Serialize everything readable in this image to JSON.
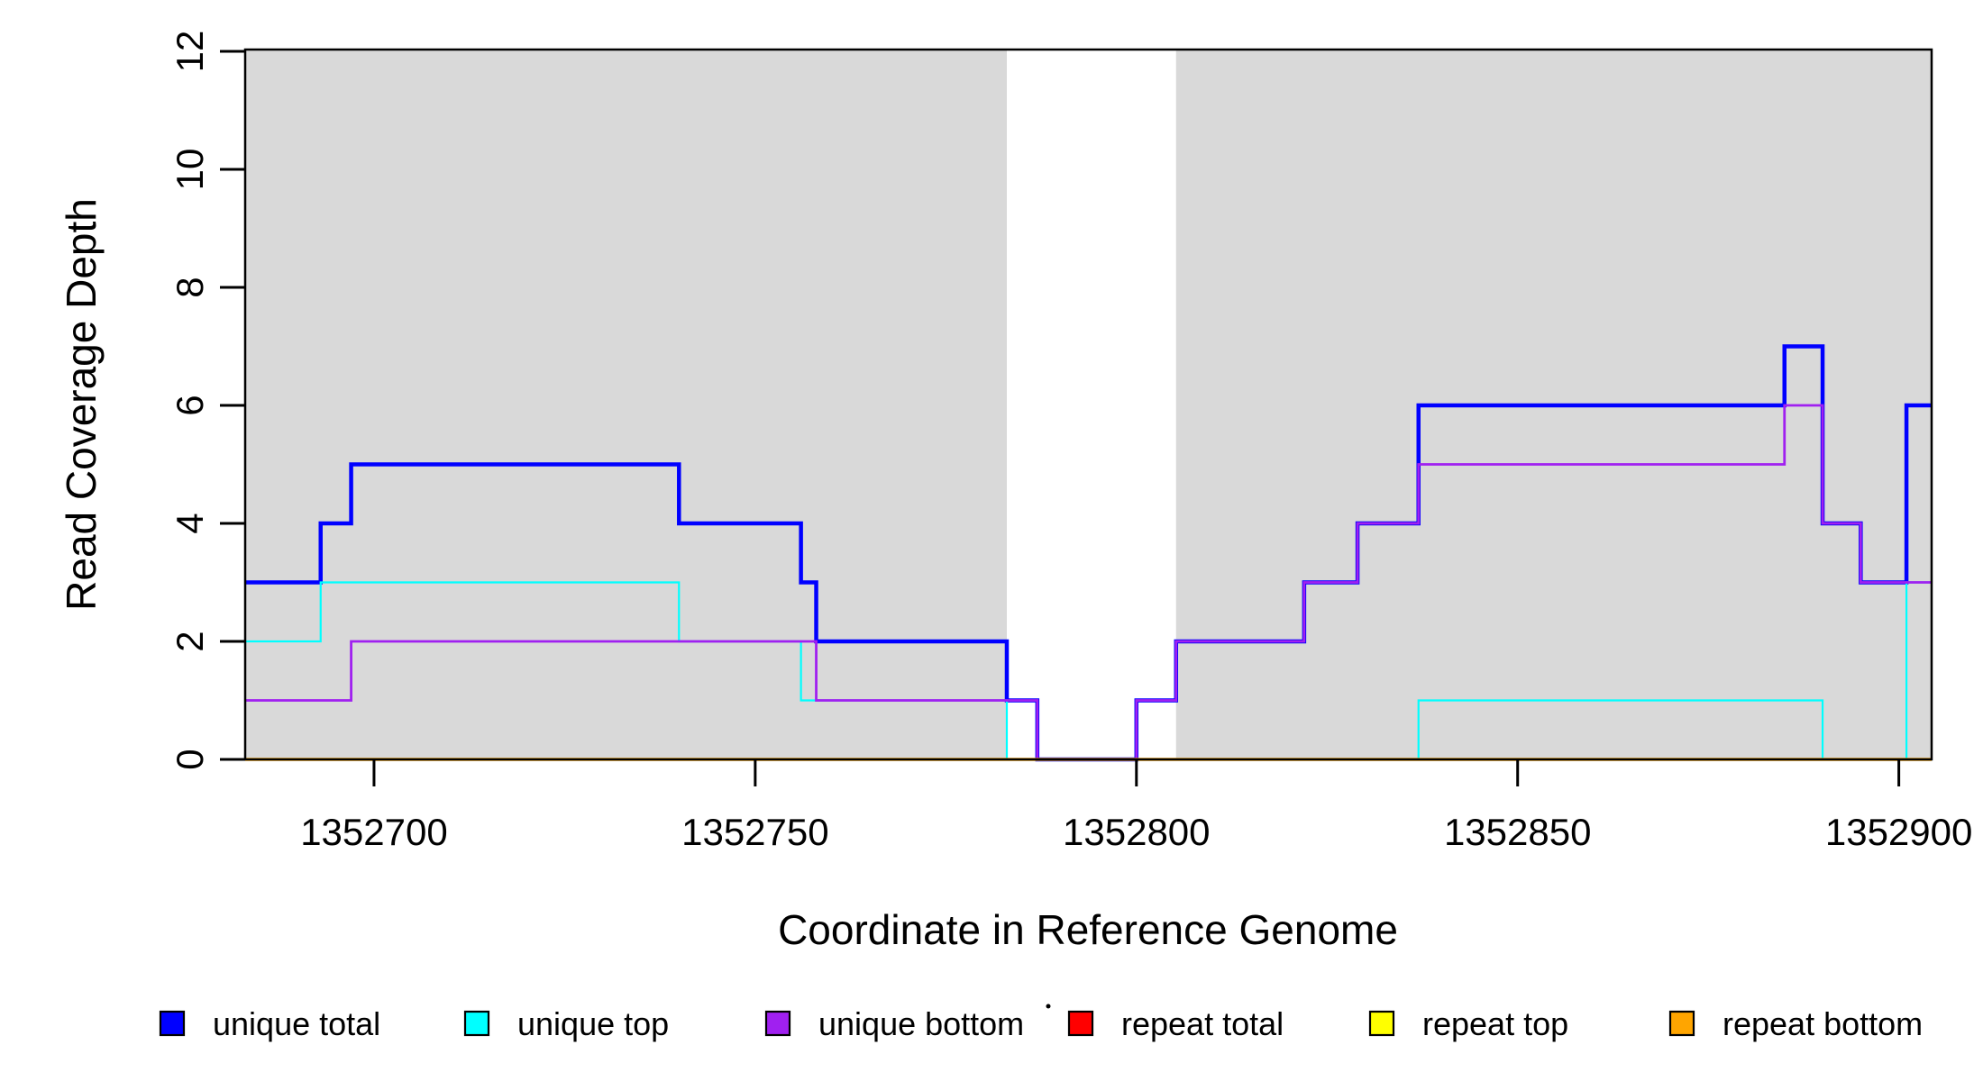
{
  "figure": {
    "xlabel": "Coordinate in Reference Genome",
    "ylabel": "Read Coverage Depth"
  },
  "chart_data": {
    "type": "line",
    "subtype": "step",
    "title": "",
    "xlabel": "Coordinate in Reference Genome",
    "ylabel": "Read Coverage Depth",
    "xlim": [
      1352683.1,
      1352904.3
    ],
    "ylim": [
      0,
      12
    ],
    "x_ticks": [
      1352700,
      1352750,
      1352800,
      1352850,
      1352900
    ],
    "y_ticks": [
      0,
      2,
      4,
      6,
      8,
      10,
      12
    ],
    "grid": false,
    "legend_position": "bottom",
    "shading": {
      "color": "#d9d9d9",
      "regions": [
        [
          1352683.1,
          1352783
        ],
        [
          1352805.2,
          1352904.3
        ]
      ]
    },
    "series": [
      {
        "name": "unique total",
        "color": "#0000ff",
        "line_width": 4.5,
        "end_x": 1352904.3,
        "steps": [
          [
            1352683.1,
            3
          ],
          [
            1352693,
            4
          ],
          [
            1352697,
            5
          ],
          [
            1352740,
            4
          ],
          [
            1352756,
            3
          ],
          [
            1352758,
            2
          ],
          [
            1352783,
            1
          ],
          [
            1352787,
            0
          ],
          [
            1352800,
            1
          ],
          [
            1352805.2,
            2
          ],
          [
            1352822,
            3
          ],
          [
            1352829,
            4
          ],
          [
            1352837,
            6
          ],
          [
            1352885,
            7
          ],
          [
            1352890,
            4
          ],
          [
            1352895,
            3
          ],
          [
            1352901,
            6
          ]
        ]
      },
      {
        "name": "unique top",
        "color": "#00ffff",
        "line_width": 2.2,
        "end_x": 1352904.3,
        "steps": [
          [
            1352683.1,
            2
          ],
          [
            1352693,
            3
          ],
          [
            1352740,
            2
          ],
          [
            1352756,
            1
          ],
          [
            1352783,
            0
          ],
          [
            1352837,
            1
          ],
          [
            1352890,
            0
          ],
          [
            1352901,
            3
          ]
        ]
      },
      {
        "name": "unique bottom",
        "color": "#a020f0",
        "line_width": 2.8,
        "end_x": 1352904.3,
        "steps": [
          [
            1352683.1,
            1
          ],
          [
            1352697,
            2
          ],
          [
            1352758,
            1
          ],
          [
            1352787,
            0
          ],
          [
            1352800,
            1
          ],
          [
            1352805.2,
            2
          ],
          [
            1352822,
            3
          ],
          [
            1352829,
            4
          ],
          [
            1352837,
            5
          ],
          [
            1352885,
            6
          ],
          [
            1352890,
            4
          ],
          [
            1352895,
            3
          ]
        ]
      },
      {
        "name": "repeat total",
        "color": "#ff0000",
        "line_width": 2.5,
        "end_x": 1352904.3,
        "steps": [
          [
            1352683.1,
            0
          ]
        ]
      },
      {
        "name": "repeat top",
        "color": "#ffff00",
        "line_width": 2.5,
        "end_x": 1352904.3,
        "steps": [
          [
            1352683.1,
            0
          ]
        ]
      },
      {
        "name": "repeat bottom",
        "color": "#ffa500",
        "line_width": 3.5,
        "end_x": 1352904.3,
        "steps": [
          [
            1352683.1,
            0
          ]
        ]
      }
    ],
    "legend": {
      "items": [
        {
          "label": "unique total",
          "color": "#0000ff",
          "x_center": 191
        },
        {
          "label": "unique top",
          "color": "#00ffff",
          "x_center": 529
        },
        {
          "label": "unique bottom",
          "color": "#a020f0",
          "x_center": 863
        },
        {
          "label": "repeat total",
          "color": "#ff0000",
          "x_center": 1199
        },
        {
          "label": "repeat top",
          "color": "#ffff00",
          "x_center": 1533
        },
        {
          "label": "repeat bottom",
          "color": "#ffa500",
          "x_center": 1866
        }
      ]
    }
  }
}
